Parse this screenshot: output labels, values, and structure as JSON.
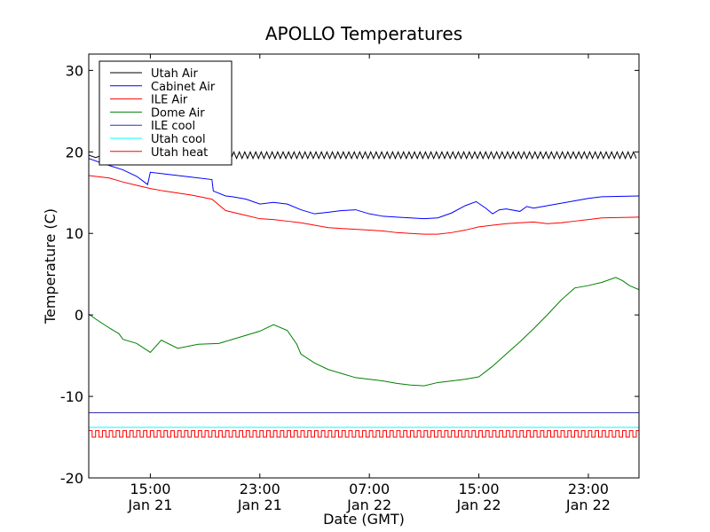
{
  "chart_data": {
    "type": "line",
    "title": "APOLLO Temperatures",
    "xlabel": "Date (GMT)",
    "ylabel": "Temperature (C)",
    "ylim": [
      -20,
      32
    ],
    "xlim": [
      10.5,
      50.7
    ],
    "x_unit": "hours since Jan 21 00:00 GMT",
    "yticks": [
      -20,
      -10,
      0,
      10,
      20,
      30
    ],
    "ytick_labels": [
      "-20",
      "-10",
      "0",
      "10",
      "20",
      "30"
    ],
    "xticks": [
      {
        "x": 15,
        "time": "15:00",
        "date": "Jan 21"
      },
      {
        "x": 23,
        "time": "23:00",
        "date": "Jan 21"
      },
      {
        "x": 31,
        "time": "07:00",
        "date": "Jan 22"
      },
      {
        "x": 39,
        "time": "15:00",
        "date": "Jan 22"
      },
      {
        "x": 47,
        "time": "23:00",
        "date": "Jan 22"
      }
    ],
    "legend_position": "top-left",
    "series": [
      {
        "name": "Utah Air",
        "color": "#000000",
        "style": "oscillating",
        "oscillation": {
          "base": 19.6,
          "amplitude": 0.4,
          "period": 0.4,
          "start": 11.5
        },
        "x": [
          10.5,
          11.0,
          11.5
        ],
        "values": [
          19.6,
          19.3,
          19.6
        ]
      },
      {
        "name": "Cabinet Air",
        "color": "#0000ff",
        "x": [
          10.5,
          11.5,
          13.0,
          14.0,
          14.8,
          15.0,
          16.0,
          18.0,
          19.5,
          19.6,
          20.5,
          21.0,
          22.0,
          23.0,
          24.0,
          25.0,
          26.0,
          27.0,
          28.0,
          29.0,
          30.0,
          31.0,
          32.0,
          33.0,
          34.0,
          35.0,
          36.0,
          37.0,
          38.0,
          38.8,
          39.5,
          40.0,
          40.5,
          41.0,
          42.0,
          42.5,
          43.0,
          44.0,
          45.0,
          46.0,
          47.0,
          48.0,
          50.7
        ],
        "values": [
          19.2,
          18.6,
          17.8,
          17.0,
          16.0,
          17.5,
          17.3,
          16.9,
          16.6,
          15.2,
          14.6,
          14.5,
          14.2,
          13.6,
          13.8,
          13.6,
          12.9,
          12.4,
          12.6,
          12.8,
          12.9,
          12.4,
          12.1,
          12.0,
          11.9,
          11.8,
          11.9,
          12.5,
          13.4,
          13.9,
          13.1,
          12.4,
          12.9,
          13.0,
          12.7,
          13.3,
          13.1,
          13.4,
          13.7,
          14.0,
          14.3,
          14.5,
          14.6
        ]
      },
      {
        "name": "ILE Air",
        "color": "#ff0000",
        "x": [
          10.5,
          12.0,
          13.0,
          14.0,
          15.0,
          16.0,
          18.0,
          19.5,
          20.5,
          22.0,
          23.0,
          24.0,
          25.0,
          26.0,
          27.0,
          28.0,
          29.0,
          30.0,
          31.0,
          32.0,
          33.0,
          34.0,
          35.0,
          36.0,
          37.0,
          38.0,
          39.0,
          40.0,
          41.0,
          42.0,
          43.0,
          44.0,
          45.0,
          46.0,
          47.0,
          48.0,
          50.7
        ],
        "values": [
          17.1,
          16.8,
          16.3,
          15.9,
          15.5,
          15.2,
          14.7,
          14.2,
          12.8,
          12.2,
          11.8,
          11.7,
          11.5,
          11.3,
          11.0,
          10.7,
          10.6,
          10.5,
          10.4,
          10.3,
          10.1,
          10.0,
          9.9,
          9.9,
          10.1,
          10.4,
          10.8,
          11.0,
          11.2,
          11.3,
          11.4,
          11.2,
          11.3,
          11.5,
          11.7,
          11.9,
          12.0
        ]
      },
      {
        "name": "Dome Air",
        "color": "#008000",
        "x": [
          10.5,
          11.0,
          12.0,
          12.7,
          13.0,
          14.0,
          15.0,
          15.8,
          17.0,
          18.5,
          20.0,
          21.0,
          22.0,
          23.0,
          23.5,
          24.0,
          25.0,
          25.7,
          26.0,
          27.0,
          28.0,
          29.0,
          30.0,
          31.0,
          32.0,
          33.0,
          34.0,
          35.0,
          36.0,
          37.0,
          38.0,
          39.0,
          40.0,
          41.0,
          42.0,
          43.0,
          44.0,
          45.0,
          46.0,
          47.0,
          48.0,
          49.0,
          49.5,
          50.0,
          50.7
        ],
        "values": [
          0.1,
          -0.5,
          -1.6,
          -2.3,
          -3.0,
          -3.5,
          -4.6,
          -3.1,
          -4.1,
          -3.6,
          -3.5,
          -3.0,
          -2.5,
          -2.0,
          -1.6,
          -1.2,
          -1.9,
          -3.6,
          -4.8,
          -5.9,
          -6.7,
          -7.2,
          -7.7,
          -7.9,
          -8.1,
          -8.4,
          -8.6,
          -8.7,
          -8.3,
          -8.1,
          -7.9,
          -7.6,
          -6.3,
          -4.8,
          -3.3,
          -1.7,
          0.0,
          1.8,
          3.3,
          3.6,
          4.0,
          4.6,
          4.2,
          3.6,
          3.1
        ]
      },
      {
        "name": "ILE cool",
        "color": "#3333aa",
        "x": [
          10.5,
          50.7
        ],
        "values": [
          -12.0,
          -12.0
        ]
      },
      {
        "name": "Utah cool",
        "color": "#00ffff",
        "x": [
          10.5,
          50.7
        ],
        "values": [
          -13.8,
          -13.8
        ]
      },
      {
        "name": "Utah heat",
        "color": "#ff0000",
        "style": "square-wave",
        "square_wave": {
          "low": -15.0,
          "high": -14.2,
          "period": 0.5
        },
        "x": [
          10.5,
          50.7
        ],
        "values": [
          -14.2,
          -14.2
        ]
      }
    ]
  }
}
